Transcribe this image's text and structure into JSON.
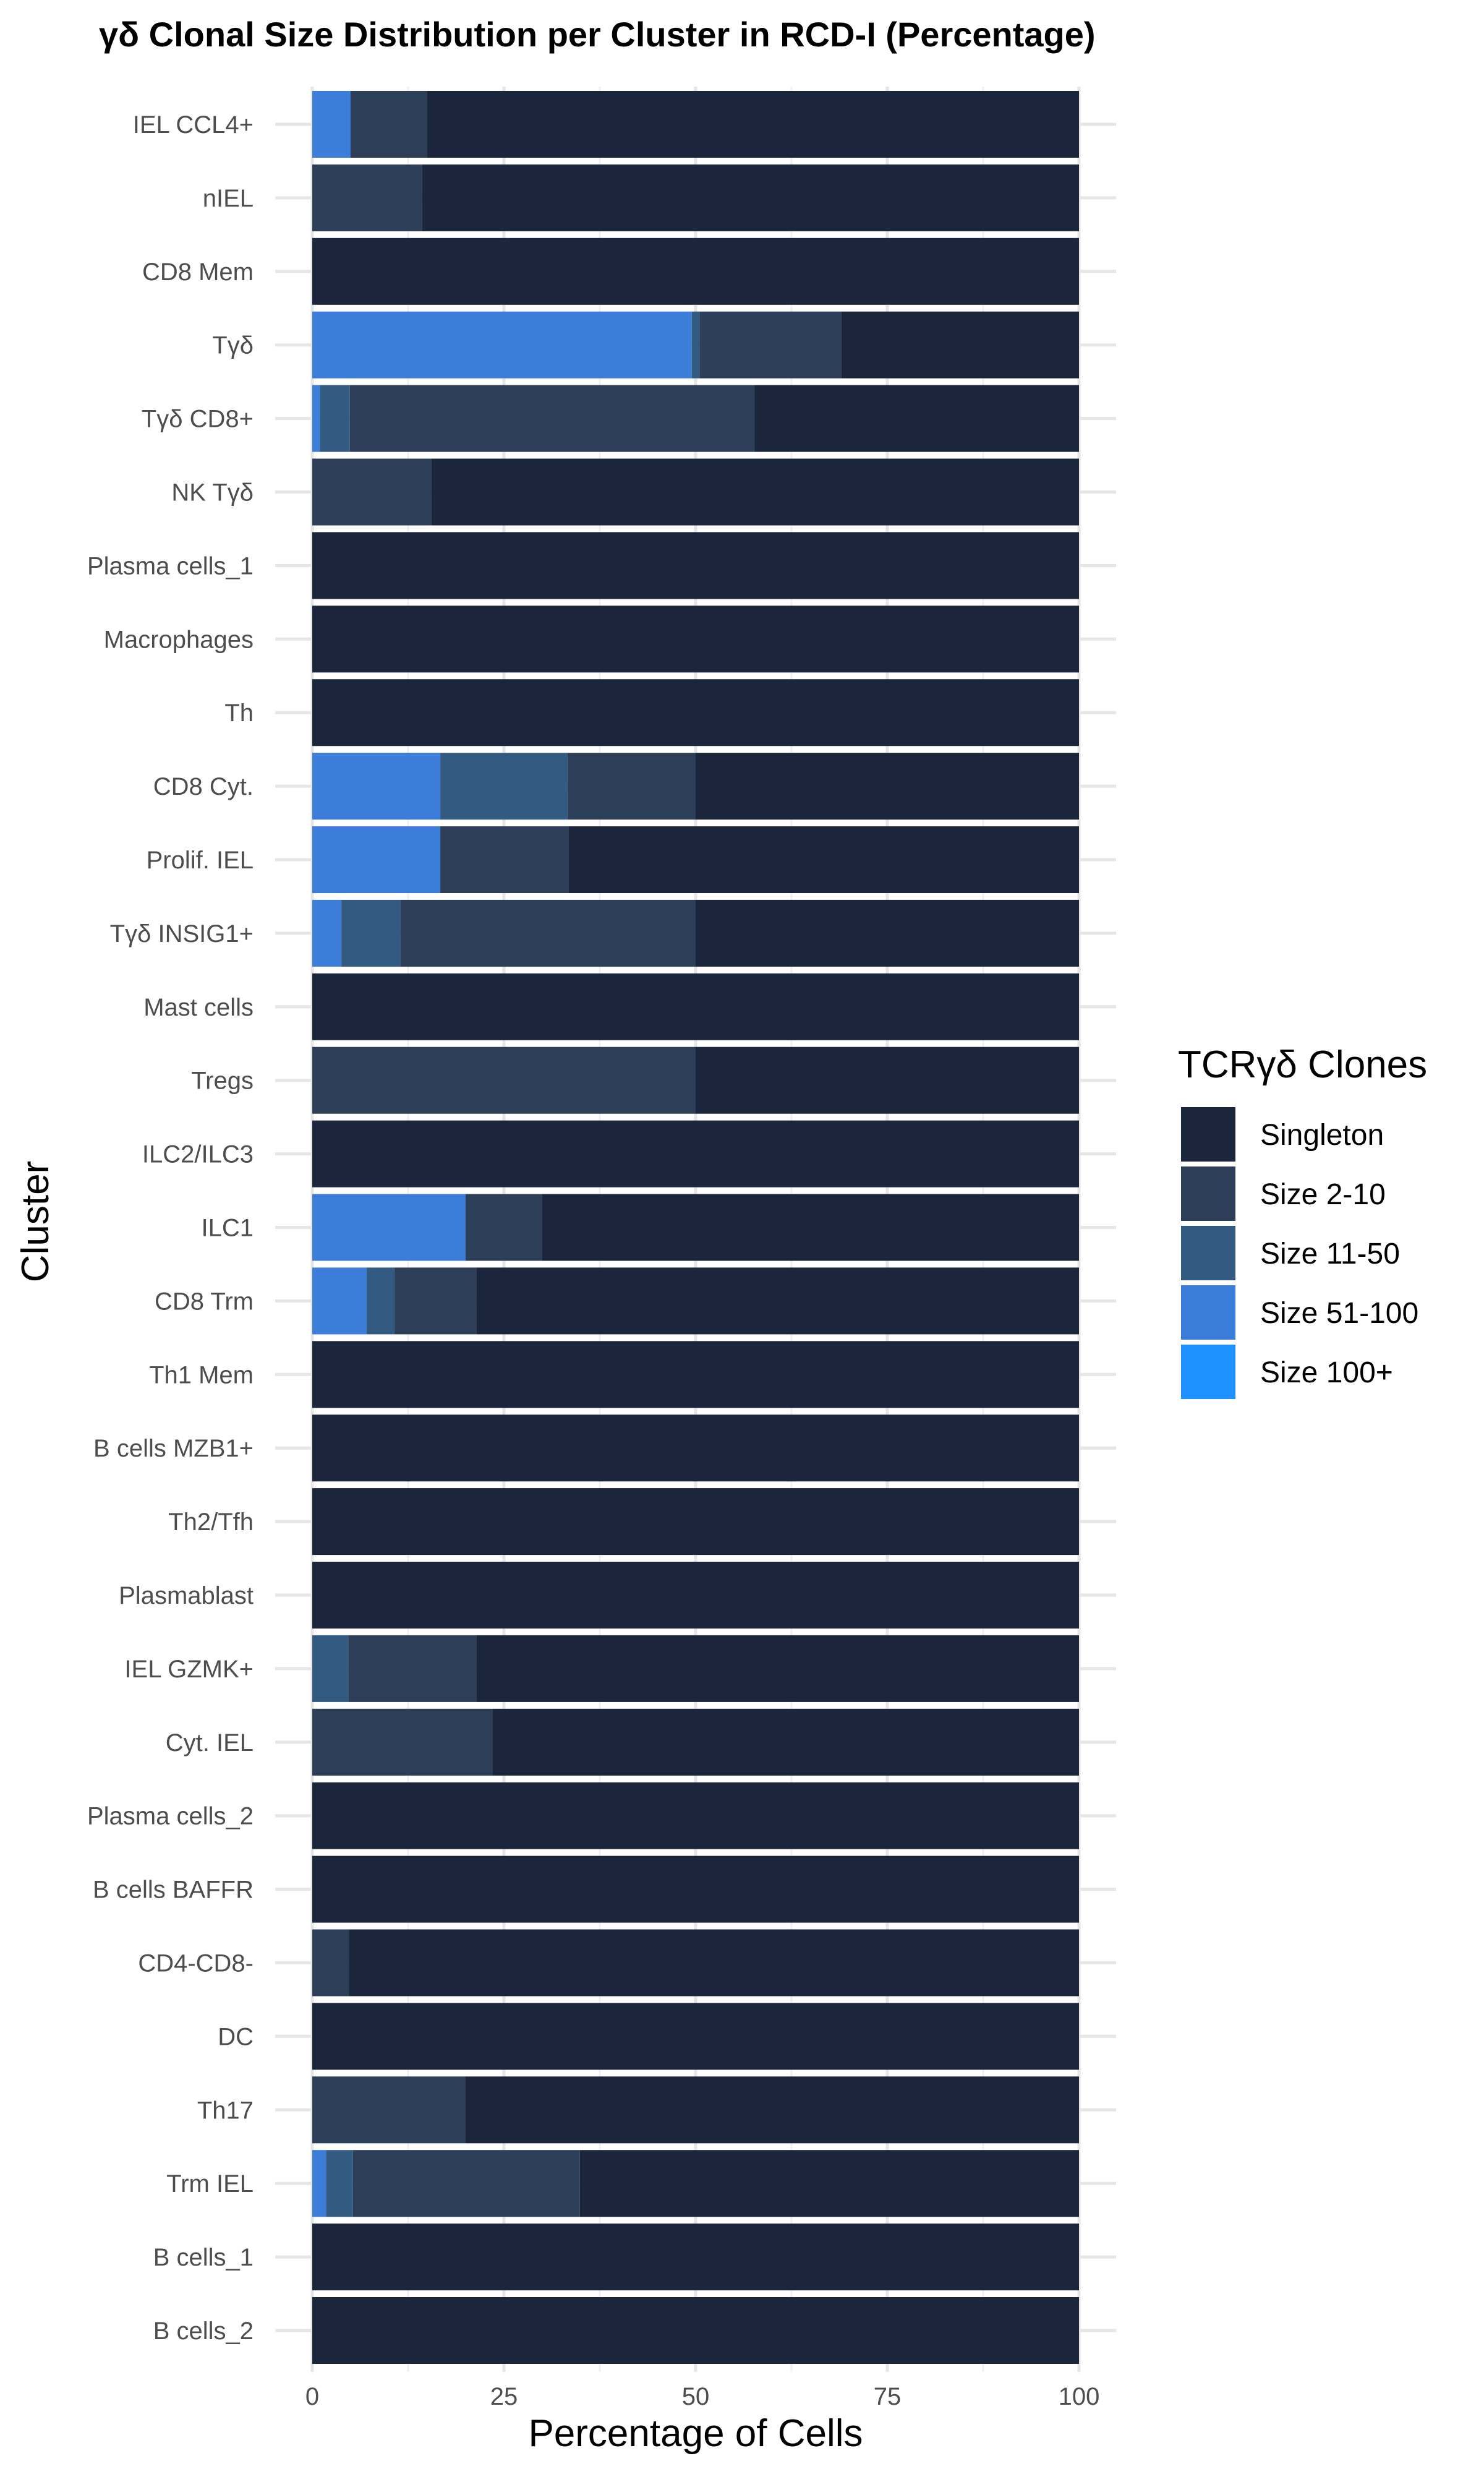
{
  "chart_data": {
    "type": "bar",
    "orientation": "horizontal",
    "stacked": true,
    "title": "γδ Clonal Size Distribution per Cluster in RCD-I (Percentage)",
    "xlabel": "Percentage of Cells",
    "ylabel": "Cluster",
    "xlim": [
      0,
      100
    ],
    "xticks": [
      0,
      25,
      50,
      75,
      100
    ],
    "grid": true,
    "legend": {
      "title": "TCRγδ Clones",
      "position": "right"
    },
    "categories": [
      "IEL CCL4+",
      "nIEL",
      "CD8 Mem",
      "Tγδ",
      "Tγδ CD8+",
      "NK Tγδ",
      "Plasma cells_1",
      "Macrophages",
      "Th",
      "CD8 Cyt.",
      "Prolif. IEL",
      "Tγδ INSIG1+",
      "Mast cells",
      "Tregs",
      "ILC2/ILC3",
      "ILC1",
      "CD8 Trm",
      "Th1 Mem",
      "B cells MZB1+",
      "Th2/Tfh",
      "Plasmablast",
      "IEL GZMK+",
      "Cyt. IEL",
      "Plasma cells_2",
      "B cells BAFFR",
      "CD4-CD8-",
      "DC",
      "Th17",
      "Trm IEL",
      "B cells_1",
      "B cells_2"
    ],
    "series": [
      {
        "name": "Size 100+",
        "color": "#1e90ff",
        "values": [
          0,
          0,
          0,
          0,
          0,
          0,
          0,
          0,
          0,
          0,
          0,
          0,
          0,
          0,
          0,
          0,
          0,
          0,
          0,
          0,
          0,
          0,
          0,
          0,
          0,
          0,
          0,
          0,
          0,
          0,
          0
        ]
      },
      {
        "name": "Size 51-100",
        "color": "#3c7dd9",
        "values": [
          5,
          0,
          0,
          49.5,
          1,
          0,
          0,
          0,
          0,
          16.7,
          16.7,
          3.8,
          0,
          0,
          0,
          20,
          7.1,
          0,
          0,
          0,
          0,
          0,
          0,
          0,
          0,
          0,
          0,
          0,
          1.8,
          0,
          0
        ]
      },
      {
        "name": "Size 11-50",
        "color": "#335b82",
        "values": [
          0,
          0,
          0,
          1,
          3.9,
          0,
          0,
          0,
          0,
          16.6,
          0,
          7.7,
          0,
          0,
          0,
          0,
          3.6,
          0,
          0,
          0,
          0,
          4.7,
          0,
          0,
          0,
          0,
          0,
          0,
          3.5,
          0,
          0
        ]
      },
      {
        "name": "Size 2-10",
        "color": "#2d3e58",
        "values": [
          10,
          14.3,
          0,
          18.5,
          52.8,
          15.5,
          0,
          0,
          0,
          16.7,
          16.7,
          38.5,
          0,
          50,
          0,
          10,
          10.7,
          0,
          0,
          0,
          0,
          16.7,
          23.5,
          0,
          0,
          4.8,
          0,
          20,
          29.6,
          0,
          0
        ]
      },
      {
        "name": "Singleton",
        "color": "#1b253b",
        "values": [
          85,
          85.7,
          100,
          31,
          42.3,
          84.5,
          100,
          100,
          100,
          50,
          66.6,
          50,
          100,
          50,
          100,
          70,
          78.6,
          100,
          100,
          100,
          100,
          78.6,
          76.5,
          100,
          100,
          95.2,
          100,
          80,
          65.1,
          100,
          100
        ]
      }
    ],
    "legend_order": [
      "Singleton",
      "Size 2-10",
      "Size 11-50",
      "Size 51-100",
      "Size 100+"
    ]
  }
}
